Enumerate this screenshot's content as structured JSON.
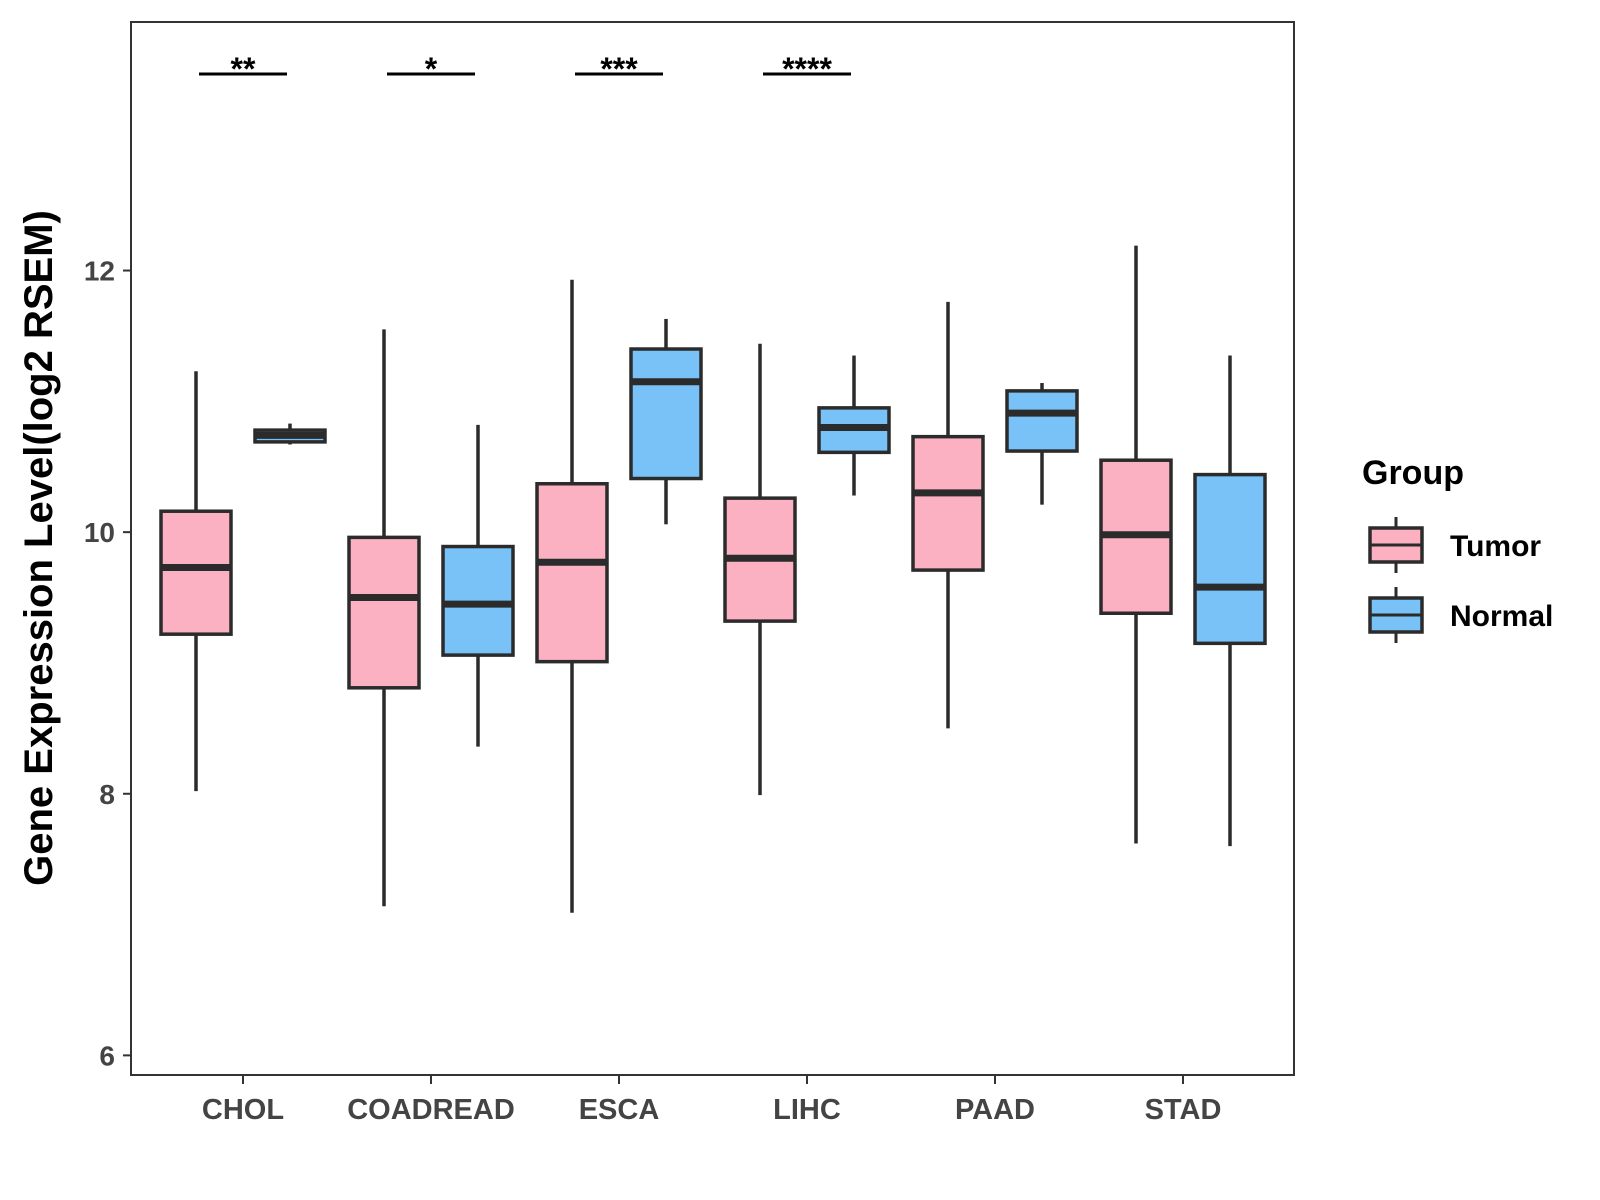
{
  "chart_data": {
    "type": "box",
    "title": "",
    "xlabel": "",
    "ylabel": "Gene Expression Level(log2 RSEM)",
    "ylim": [
      5.85,
      13.9
    ],
    "yticks": [
      6,
      8,
      10,
      12
    ],
    "grid": false,
    "legend": {
      "title": "Group",
      "placement": "right",
      "entries": [
        "Tumor",
        "Normal"
      ]
    },
    "colors": {
      "Tumor": "#FBB1C2",
      "Normal": "#79C2F8",
      "outline": "#2b2b2b"
    },
    "categories": [
      "CHOL",
      "COADREAD",
      "ESCA",
      "LIHC",
      "PAAD",
      "STAD"
    ],
    "series": [
      {
        "name": "Tumor",
        "boxes": [
          {
            "min": 8.02,
            "q1": 9.22,
            "median": 9.73,
            "q3": 10.16,
            "max": 11.23
          },
          {
            "min": 7.14,
            "q1": 8.81,
            "median": 9.5,
            "q3": 9.96,
            "max": 11.55
          },
          {
            "min": 7.09,
            "q1": 9.01,
            "median": 9.77,
            "q3": 10.37,
            "max": 11.93
          },
          {
            "min": 7.99,
            "q1": 9.32,
            "median": 9.8,
            "q3": 10.26,
            "max": 11.44
          },
          {
            "min": 8.5,
            "q1": 9.71,
            "median": 10.3,
            "q3": 10.73,
            "max": 11.76
          },
          {
            "min": 7.62,
            "q1": 9.38,
            "median": 9.98,
            "q3": 10.55,
            "max": 12.19
          }
        ]
      },
      {
        "name": "Normal",
        "boxes": [
          {
            "min": 10.67,
            "q1": 10.69,
            "median": 10.74,
            "q3": 10.78,
            "max": 10.83
          },
          {
            "min": 8.36,
            "q1": 9.06,
            "median": 9.45,
            "q3": 9.89,
            "max": 10.82
          },
          {
            "min": 10.06,
            "q1": 10.41,
            "median": 11.15,
            "q3": 11.4,
            "max": 11.63
          },
          {
            "min": 10.28,
            "q1": 10.61,
            "median": 10.8,
            "q3": 10.95,
            "max": 11.35
          },
          {
            "min": 10.21,
            "q1": 10.62,
            "median": 10.91,
            "q3": 11.08,
            "max": 11.14
          },
          {
            "min": 7.6,
            "q1": 9.15,
            "median": 9.58,
            "q3": 10.44,
            "max": 11.35
          }
        ]
      }
    ],
    "significance": [
      {
        "category": "CHOL",
        "label": "**"
      },
      {
        "category": "COADREAD",
        "label": "*"
      },
      {
        "category": "ESCA",
        "label": "***"
      },
      {
        "category": "LIHC",
        "label": "****"
      }
    ]
  }
}
